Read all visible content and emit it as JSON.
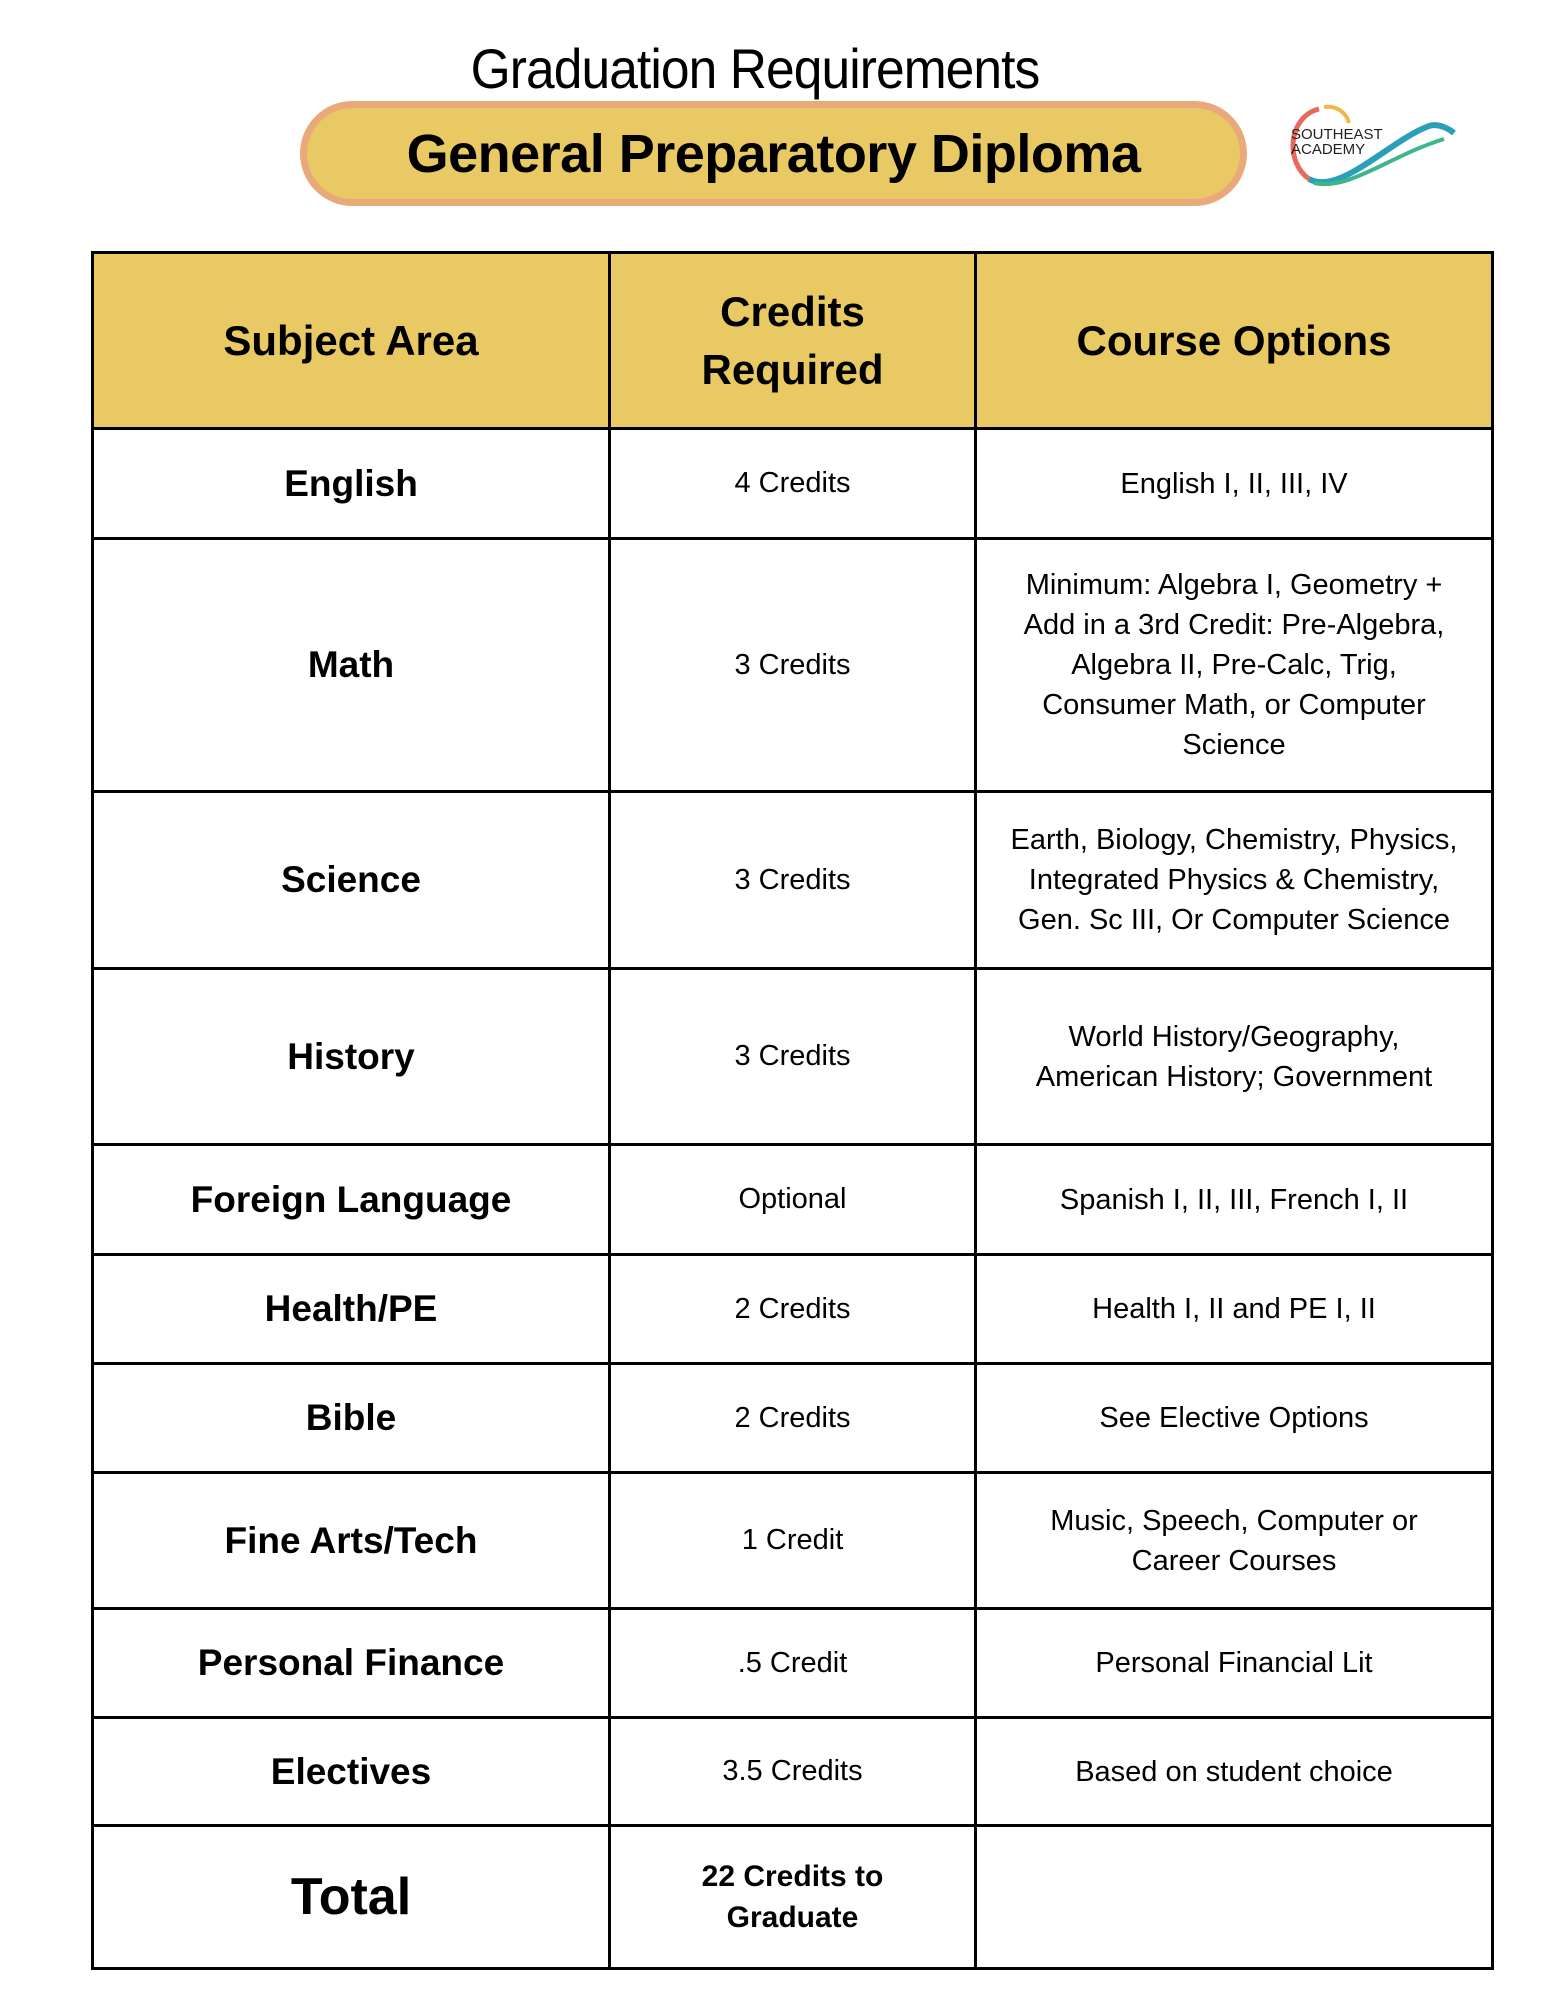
{
  "header": {
    "title": "Graduation Requirements",
    "subtitle": "General Preparatory Diploma",
    "logo_text": "SOUTHEAST ACADEMY"
  },
  "colors": {
    "accent": "#e8c964",
    "pill_border": "#eaa97a"
  },
  "table": {
    "columns": [
      "Subject Area",
      "Credits Required",
      "Course Options"
    ],
    "rows": [
      {
        "subject": "English",
        "credits": "4 Credits",
        "options": [
          "English I, II, III, IV"
        ]
      },
      {
        "subject": "Math",
        "credits": "3 Credits",
        "options": [
          "Minimum: Algebra I, Geometry +",
          "Add in a 3rd Credit: Pre-Algebra,",
          "Algebra II, Pre-Calc, Trig,",
          "Consumer Math, or Computer",
          "Science"
        ]
      },
      {
        "subject": "Science",
        "credits": "3 Credits",
        "options": [
          "Earth, Biology, Chemistry, Physics,",
          "Integrated Physics & Chemistry,",
          "Gen. Sc III, Or Computer Science"
        ]
      },
      {
        "subject": "History",
        "credits": "3 Credits",
        "options": [
          "World History/Geography,",
          "American History; Government"
        ]
      },
      {
        "subject": "Foreign Language",
        "credits": "Optional",
        "options": [
          "Spanish I, II, III, French I, II"
        ]
      },
      {
        "subject": "Health/PE",
        "credits": "2 Credits",
        "options": [
          "Health I, II and PE I, II"
        ]
      },
      {
        "subject": "Bible",
        "credits": "2 Credits",
        "options": [
          "See Elective Options"
        ]
      },
      {
        "subject": "Fine Arts/Tech",
        "credits": "1 Credit",
        "options": [
          "Music, Speech, Computer or",
          "Career Courses"
        ]
      },
      {
        "subject": "Personal Finance",
        "credits": ".5 Credit",
        "options": [
          "Personal Financial Lit"
        ]
      },
      {
        "subject": "Electives",
        "credits": "3.5 Credits",
        "options": [
          "Based on student choice"
        ]
      }
    ],
    "total": {
      "label": "Total",
      "credits": "22 Credits to Graduate",
      "options": ""
    }
  }
}
